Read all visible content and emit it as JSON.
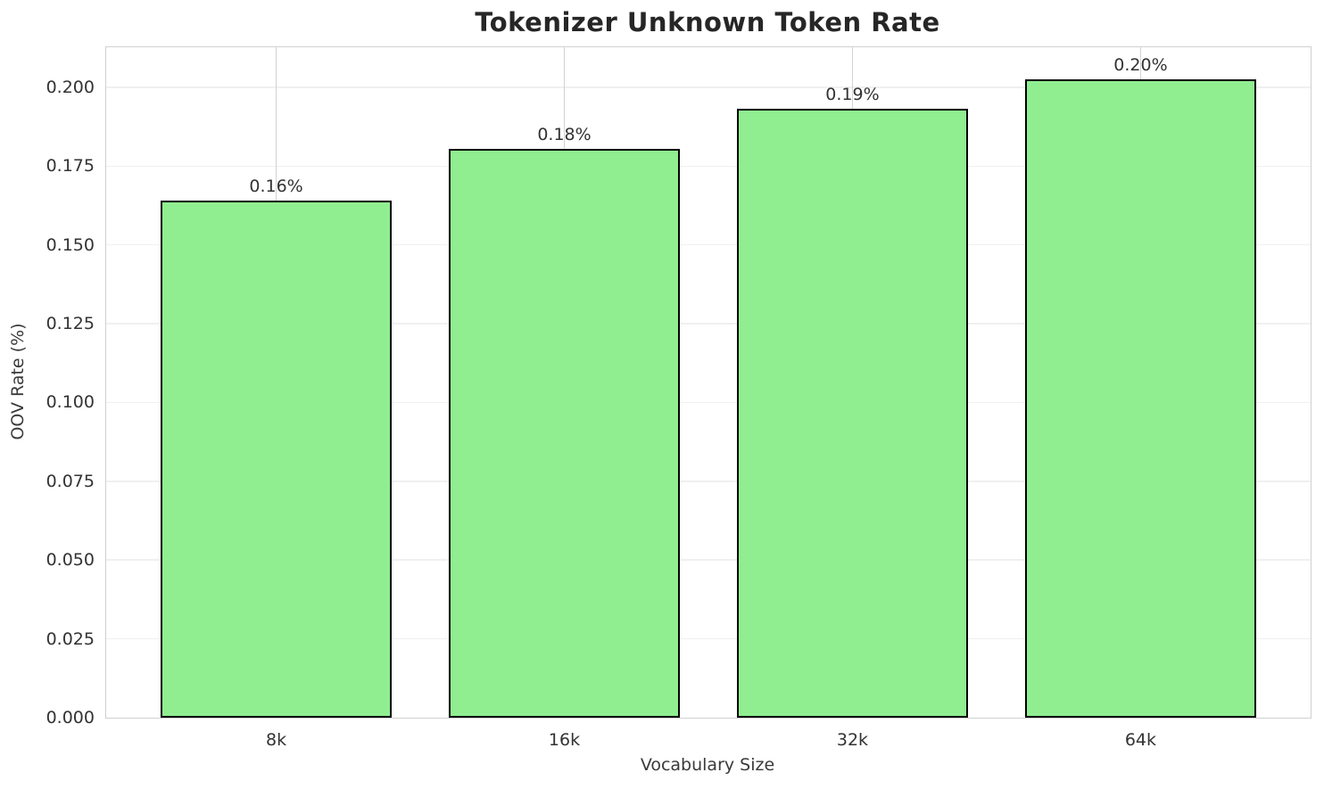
{
  "chart_data": {
    "type": "bar",
    "title": "Tokenizer Unknown Token Rate",
    "xlabel": "Vocabulary Size",
    "ylabel": "OOV Rate (%)",
    "categories": [
      "8k",
      "16k",
      "32k",
      "64k"
    ],
    "values": [
      0.164,
      0.1805,
      0.1933,
      0.2025
    ],
    "bar_labels": [
      "0.16%",
      "0.18%",
      "0.19%",
      "0.20%"
    ],
    "yticks": [
      {
        "value": 0.0,
        "label": "0.000"
      },
      {
        "value": 0.025,
        "label": "0.025"
      },
      {
        "value": 0.05,
        "label": "0.050"
      },
      {
        "value": 0.075,
        "label": "0.075"
      },
      {
        "value": 0.1,
        "label": "0.100"
      },
      {
        "value": 0.125,
        "label": "0.125"
      },
      {
        "value": 0.15,
        "label": "0.150"
      },
      {
        "value": 0.175,
        "label": "0.175"
      },
      {
        "value": 0.2,
        "label": "0.200"
      }
    ],
    "ylim": [
      0,
      0.2127
    ],
    "xlim": [
      -0.59,
      3.59
    ],
    "bar_width": 0.8,
    "grid": true,
    "legend": "none",
    "colors": {
      "bar_fill": "#90EE90",
      "bar_edge": "#000000",
      "grid_horizontal": "#f0f0f0",
      "grid_vertical": "#d2d2d2",
      "spine": "#d0d0d0",
      "background": "#ffffff",
      "title_text": "#262626",
      "tick_text": "#333333"
    }
  }
}
